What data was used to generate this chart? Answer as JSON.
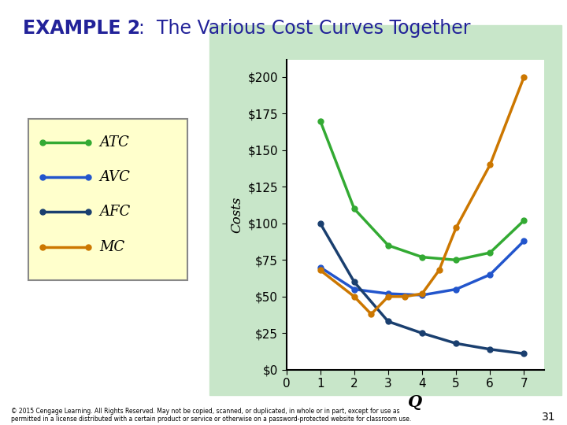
{
  "title_bold": "EXAMPLE 2",
  "title_rest": ":  The Various Cost Curves Together",
  "xlabel": "Q",
  "ylabel": "Costs",
  "bg_outer": "#c8e6c9",
  "bg_inner": "#ffffff",
  "yticks": [
    0,
    25,
    50,
    75,
    100,
    125,
    150,
    175,
    200
  ],
  "xticks": [
    0,
    1,
    2,
    3,
    4,
    5,
    6,
    7
  ],
  "ylim": [
    0,
    212
  ],
  "xlim": [
    0,
    7.6
  ],
  "ATC": {
    "x": [
      1,
      2,
      3,
      4,
      5,
      6,
      7
    ],
    "y": [
      170,
      110,
      85,
      77,
      75,
      80,
      102
    ],
    "color": "#33aa33",
    "label": "ATC"
  },
  "AVC": {
    "x": [
      1,
      2,
      3,
      4,
      5,
      6,
      7
    ],
    "y": [
      70,
      55,
      52,
      51,
      55,
      65,
      88
    ],
    "color": "#2255cc",
    "label": "AVC"
  },
  "AFC": {
    "x": [
      1,
      2,
      3,
      4,
      5,
      6,
      7
    ],
    "y": [
      100,
      60,
      33,
      25,
      18,
      14,
      11
    ],
    "color": "#1a3f6f",
    "label": "AFC"
  },
  "MC": {
    "x": [
      1,
      2,
      2.5,
      3,
      3.5,
      4,
      4.5,
      5,
      6,
      7
    ],
    "y": [
      68,
      50,
      38,
      50,
      50,
      52,
      68,
      97,
      140,
      200
    ],
    "color": "#cc7700",
    "label": "MC"
  },
  "legend_facecolor": "#ffffcc",
  "legend_edgecolor": "#888888",
  "footer": "© 2015 Cengage Learning. All Rights Reserved. May not be copied, scanned, or duplicated, in whole or in part, except for use as\npermitted in a license distributed with a certain product or service or otherwise on a password-protected website for classroom use.",
  "slide_number": "31"
}
